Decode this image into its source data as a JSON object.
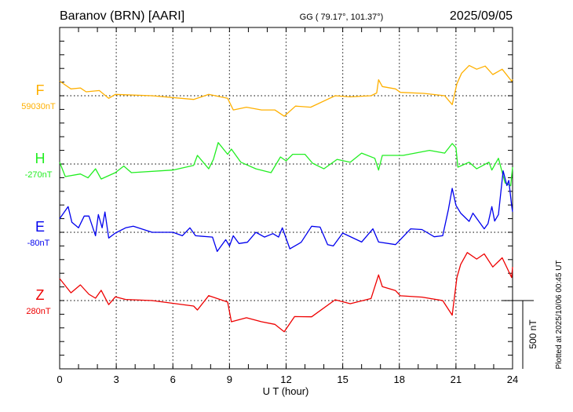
{
  "header": {
    "station": "Baranov (BRN)  [AARI]",
    "coords": "GG ( 79.17°, 101.37°)",
    "date": "2025/09/05"
  },
  "footer": {
    "plotted": "Plotted at 2025/10/06 00:45 UT",
    "scale_label": "500 nT"
  },
  "chart_data": {
    "type": "line",
    "title": "Baranov (BRN)  [AARI]",
    "xlabel": "U T (hour)",
    "xlim": [
      0,
      24
    ],
    "x_ticks": [
      "0",
      "3",
      "6",
      "9",
      "12",
      "15",
      "18",
      "21",
      "24"
    ],
    "scale_bar_nT": 500,
    "grid": true,
    "series": [
      {
        "name": "F",
        "baseline": "59030nT",
        "color": "#ffb000",
        "offset_index": 0,
        "points": [
          [
            0,
            107
          ],
          [
            0.6,
            50
          ],
          [
            1.1,
            57
          ],
          [
            1.4,
            29
          ],
          [
            2.1,
            38
          ],
          [
            2.6,
            -19
          ],
          [
            2.95,
            10
          ],
          [
            4.9,
            0
          ],
          [
            7.1,
            -27
          ],
          [
            7.9,
            10
          ],
          [
            8.9,
            -19
          ],
          [
            9.2,
            -104
          ],
          [
            9.9,
            -84
          ],
          [
            10.7,
            -104
          ],
          [
            11.4,
            -104
          ],
          [
            11.9,
            -150
          ],
          [
            12.5,
            -76
          ],
          [
            13.3,
            -84
          ],
          [
            14.6,
            0
          ],
          [
            15.4,
            -8
          ],
          [
            16.5,
            0
          ],
          [
            16.8,
            20
          ],
          [
            16.9,
            117
          ],
          [
            17.1,
            67
          ],
          [
            17.8,
            50
          ],
          [
            18.05,
            25
          ],
          [
            19.3,
            17
          ],
          [
            20.4,
            0
          ],
          [
            20.8,
            -65
          ],
          [
            21.05,
            88
          ],
          [
            21.3,
            165
          ],
          [
            21.7,
            222
          ],
          [
            22.1,
            194
          ],
          [
            22.55,
            217
          ],
          [
            22.95,
            155
          ],
          [
            23.45,
            194
          ],
          [
            23.95,
            107
          ],
          [
            24,
            120
          ]
        ]
      },
      {
        "name": "H",
        "baseline": "-270nT",
        "color": "#22ee22",
        "offset_index": 1,
        "points": [
          [
            0,
            13
          ],
          [
            0.3,
            -92
          ],
          [
            1.1,
            -73
          ],
          [
            1.5,
            -101
          ],
          [
            1.9,
            -35
          ],
          [
            2.2,
            -110
          ],
          [
            2.95,
            -63
          ],
          [
            3.4,
            -15
          ],
          [
            3.8,
            -63
          ],
          [
            6.0,
            -44
          ],
          [
            7.1,
            -10
          ],
          [
            7.3,
            63
          ],
          [
            7.9,
            -35
          ],
          [
            8.15,
            34
          ],
          [
            8.4,
            157
          ],
          [
            8.9,
            71
          ],
          [
            9.1,
            109
          ],
          [
            9.6,
            13
          ],
          [
            10.4,
            -35
          ],
          [
            11.2,
            -63
          ],
          [
            11.7,
            52
          ],
          [
            12.0,
            23
          ],
          [
            12.35,
            71
          ],
          [
            13.0,
            71
          ],
          [
            13.4,
            6
          ],
          [
            14.0,
            -35
          ],
          [
            14.7,
            34
          ],
          [
            15.4,
            13
          ],
          [
            16.0,
            80
          ],
          [
            16.7,
            42
          ],
          [
            16.9,
            -44
          ],
          [
            17.1,
            63
          ],
          [
            18.2,
            63
          ],
          [
            19.6,
            100
          ],
          [
            20.4,
            80
          ],
          [
            20.8,
            150
          ],
          [
            21.0,
            120
          ],
          [
            21.1,
            -23
          ],
          [
            21.7,
            13
          ],
          [
            22.1,
            -35
          ],
          [
            22.75,
            13
          ],
          [
            22.9,
            -44
          ],
          [
            23.25,
            42
          ],
          [
            23.6,
            -138
          ],
          [
            23.9,
            -159
          ],
          [
            24,
            -23
          ]
        ]
      },
      {
        "name": "E",
        "baseline": "-80nT",
        "color": "#0000ee",
        "offset_index": 2,
        "points": [
          [
            0,
            100
          ],
          [
            0.45,
            188
          ],
          [
            0.65,
            73
          ],
          [
            1.0,
            33
          ],
          [
            1.3,
            119
          ],
          [
            1.55,
            119
          ],
          [
            1.9,
            -25
          ],
          [
            2.05,
            130
          ],
          [
            2.25,
            33
          ],
          [
            2.4,
            148
          ],
          [
            2.6,
            -42
          ],
          [
            2.95,
            -6
          ],
          [
            3.5,
            33
          ],
          [
            3.9,
            44
          ],
          [
            4.9,
            0
          ],
          [
            6.0,
            0
          ],
          [
            6.5,
            -25
          ],
          [
            6.9,
            33
          ],
          [
            7.2,
            -25
          ],
          [
            8.1,
            -35
          ],
          [
            8.35,
            -140
          ],
          [
            8.8,
            -54
          ],
          [
            9.0,
            -100
          ],
          [
            9.2,
            -25
          ],
          [
            9.5,
            -82
          ],
          [
            9.95,
            -73
          ],
          [
            10.4,
            0
          ],
          [
            10.85,
            -35
          ],
          [
            11.3,
            -10
          ],
          [
            11.6,
            -35
          ],
          [
            11.8,
            33
          ],
          [
            12.2,
            -121
          ],
          [
            12.8,
            -73
          ],
          [
            13.35,
            44
          ],
          [
            13.8,
            38
          ],
          [
            14.2,
            -90
          ],
          [
            14.5,
            -100
          ],
          [
            15.0,
            -6
          ],
          [
            16.0,
            -71
          ],
          [
            16.6,
            25
          ],
          [
            16.9,
            -71
          ],
          [
            17.8,
            -90
          ],
          [
            18.6,
            25
          ],
          [
            19.2,
            20
          ],
          [
            19.85,
            -33
          ],
          [
            20.3,
            -25
          ],
          [
            20.6,
            168
          ],
          [
            20.8,
            322
          ],
          [
            21.0,
            197
          ],
          [
            21.25,
            140
          ],
          [
            21.7,
            80
          ],
          [
            21.9,
            140
          ],
          [
            22.5,
            25
          ],
          [
            22.7,
            63
          ],
          [
            22.9,
            188
          ],
          [
            23.05,
            82
          ],
          [
            23.25,
            130
          ],
          [
            23.5,
            450
          ],
          [
            23.7,
            342
          ],
          [
            23.8,
            380
          ],
          [
            23.95,
            197
          ],
          [
            24,
            150
          ]
        ]
      },
      {
        "name": "Z",
        "baseline": "280nT",
        "color": "#ee0000",
        "offset_index": 3,
        "points": [
          [
            0,
            161
          ],
          [
            0.6,
            57
          ],
          [
            1.1,
            115
          ],
          [
            1.55,
            46
          ],
          [
            1.9,
            17
          ],
          [
            2.2,
            75
          ],
          [
            2.6,
            -30
          ],
          [
            2.95,
            27
          ],
          [
            3.5,
            8
          ],
          [
            4.9,
            0
          ],
          [
            7.1,
            -40
          ],
          [
            7.3,
            -69
          ],
          [
            7.9,
            36
          ],
          [
            8.9,
            -11
          ],
          [
            9.1,
            -155
          ],
          [
            9.9,
            -126
          ],
          [
            10.7,
            -155
          ],
          [
            11.4,
            -174
          ],
          [
            11.9,
            -228
          ],
          [
            12.45,
            -117
          ],
          [
            13.35,
            -119
          ],
          [
            14.6,
            6
          ],
          [
            15.4,
            -23
          ],
          [
            16.5,
            15
          ],
          [
            16.9,
            188
          ],
          [
            17.1,
            102
          ],
          [
            17.8,
            73
          ],
          [
            18.05,
            35
          ],
          [
            19.2,
            25
          ],
          [
            20.3,
            0
          ],
          [
            20.8,
            -107
          ],
          [
            21.05,
            169
          ],
          [
            21.25,
            265
          ],
          [
            21.6,
            352
          ],
          [
            22.1,
            304
          ],
          [
            22.5,
            342
          ],
          [
            22.95,
            246
          ],
          [
            23.45,
            313
          ],
          [
            23.95,
            169
          ],
          [
            24,
            246
          ]
        ]
      }
    ]
  }
}
